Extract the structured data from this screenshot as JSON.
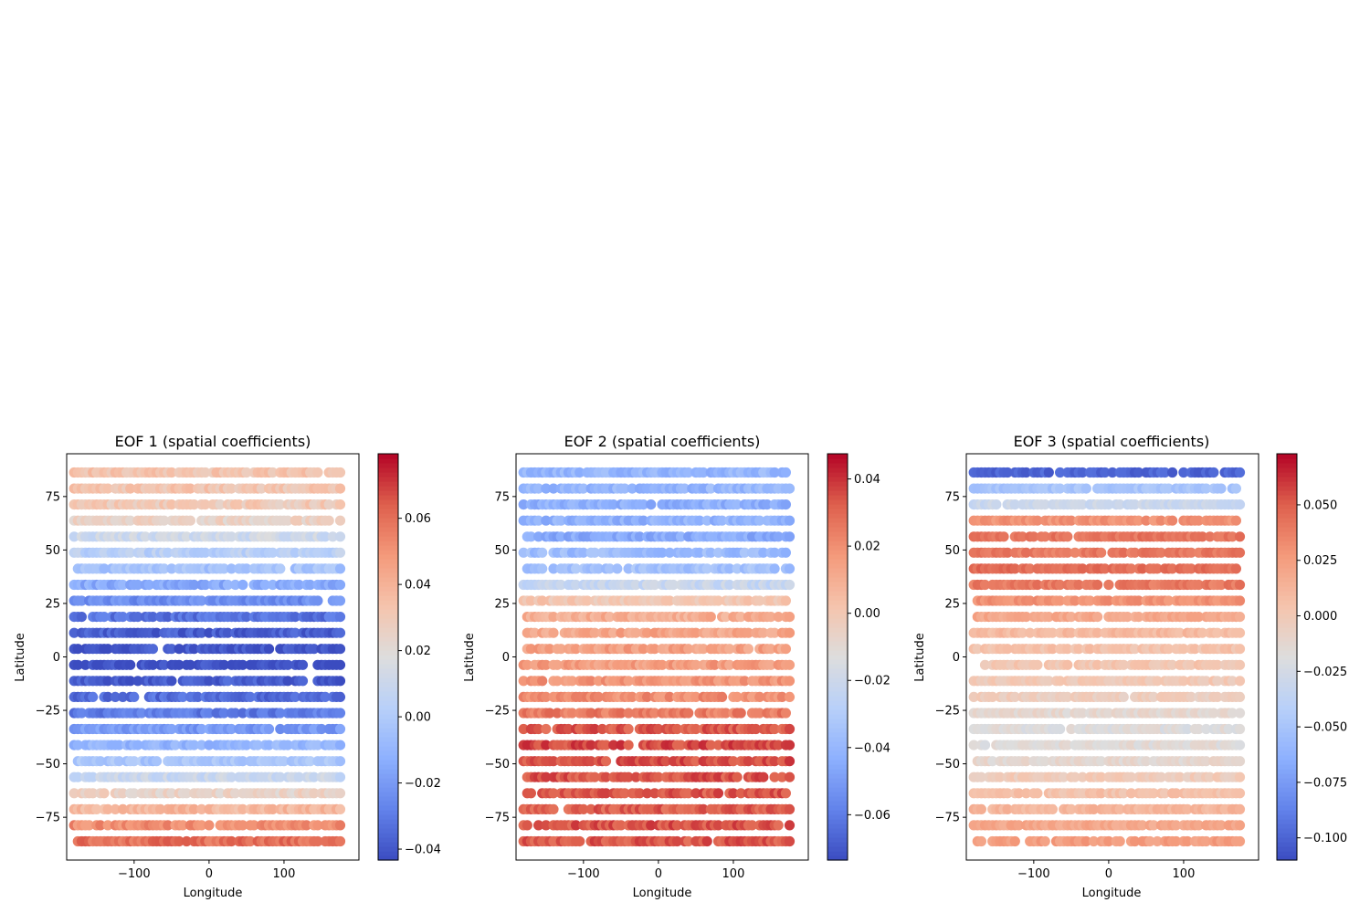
{
  "chart_data": [
    {
      "type": "scatter",
      "title": "EOF 1 (spatial coefficients)",
      "xlabel": "Longitude",
      "ylabel": "Latitude",
      "xlim": [
        -190,
        200
      ],
      "ylim": [
        -95,
        95
      ],
      "x_ticks": [
        -100,
        0,
        100
      ],
      "x_tick_labels": [
        "−100",
        "0",
        "100"
      ],
      "y_ticks": [
        -75,
        -50,
        -25,
        0,
        25,
        50,
        75
      ],
      "y_tick_labels": [
        "−75",
        "−50",
        "−25",
        "0",
        "25",
        "50",
        "75"
      ],
      "colormap": "coolwarm",
      "color_range": [
        -0.0433,
        0.0795
      ],
      "colorbar_ticks": [
        -0.04,
        -0.02,
        0.0,
        0.02,
        0.04,
        0.06
      ],
      "colorbar_tick_labels": [
        "−0.04",
        "−0.02",
        "0.00",
        "0.02",
        "0.04",
        "0.06"
      ],
      "lon_range": [
        -180,
        175
      ],
      "lat_rows": [
        {
          "lat": 86.25,
          "value": 0.033
        },
        {
          "lat": 78.75,
          "value": 0.032
        },
        {
          "lat": 71.25,
          "value": 0.03
        },
        {
          "lat": 63.75,
          "value": 0.025
        },
        {
          "lat": 56.25,
          "value": 0.012
        },
        {
          "lat": 48.75,
          "value": 0.004
        },
        {
          "lat": 41.25,
          "value": -0.004
        },
        {
          "lat": 33.75,
          "value": -0.014
        },
        {
          "lat": 26.25,
          "value": -0.024
        },
        {
          "lat": 18.75,
          "value": -0.032
        },
        {
          "lat": 11.25,
          "value": -0.038
        },
        {
          "lat": 3.75,
          "value": -0.041
        },
        {
          "lat": -3.75,
          "value": -0.042
        },
        {
          "lat": -11.25,
          "value": -0.038
        },
        {
          "lat": -18.75,
          "value": -0.034
        },
        {
          "lat": -26.25,
          "value": -0.03
        },
        {
          "lat": -33.75,
          "value": -0.02
        },
        {
          "lat": -41.25,
          "value": -0.01
        },
        {
          "lat": -48.75,
          "value": -0.002
        },
        {
          "lat": -56.25,
          "value": 0.01
        },
        {
          "lat": -63.75,
          "value": 0.025
        },
        {
          "lat": -71.25,
          "value": 0.038
        },
        {
          "lat": -78.75,
          "value": 0.052
        },
        {
          "lat": -86.25,
          "value": 0.06
        }
      ]
    },
    {
      "type": "scatter",
      "title": "EOF 2 (spatial coefficients)",
      "xlabel": "Longitude",
      "ylabel": "Latitude",
      "xlim": [
        -190,
        200
      ],
      "ylim": [
        -95,
        95
      ],
      "x_ticks": [
        -100,
        0,
        100
      ],
      "x_tick_labels": [
        "−100",
        "0",
        "100"
      ],
      "y_ticks": [
        -75,
        -50,
        -25,
        0,
        25,
        50,
        75
      ],
      "y_tick_labels": [
        "−75",
        "−50",
        "−25",
        "0",
        "25",
        "50",
        "75"
      ],
      "colormap": "coolwarm",
      "color_range": [
        -0.0735,
        0.0475
      ],
      "colorbar_ticks": [
        -0.06,
        -0.04,
        -0.02,
        0.0,
        0.02,
        0.04
      ],
      "colorbar_tick_labels": [
        "−0.06",
        "−0.04",
        "−0.02",
        "0.00",
        "0.02",
        "0.04"
      ],
      "lon_range": [
        -180,
        175
      ],
      "lat_rows": [
        {
          "lat": 86.25,
          "value": -0.04
        },
        {
          "lat": 78.75,
          "value": -0.04
        },
        {
          "lat": 71.25,
          "value": -0.043
        },
        {
          "lat": 63.75,
          "value": -0.042
        },
        {
          "lat": 56.25,
          "value": -0.045
        },
        {
          "lat": 48.75,
          "value": -0.038
        },
        {
          "lat": 41.25,
          "value": -0.035
        },
        {
          "lat": 33.75,
          "value": -0.022
        },
        {
          "lat": 26.25,
          "value": 0.0
        },
        {
          "lat": 18.75,
          "value": 0.01
        },
        {
          "lat": 11.25,
          "value": 0.013
        },
        {
          "lat": 3.75,
          "value": 0.015
        },
        {
          "lat": -3.75,
          "value": 0.016
        },
        {
          "lat": -11.25,
          "value": 0.018
        },
        {
          "lat": -18.75,
          "value": 0.02
        },
        {
          "lat": -26.25,
          "value": 0.025
        },
        {
          "lat": -33.75,
          "value": 0.033
        },
        {
          "lat": -41.25,
          "value": 0.036
        },
        {
          "lat": -48.75,
          "value": 0.035
        },
        {
          "lat": -56.25,
          "value": 0.034
        },
        {
          "lat": -63.75,
          "value": 0.033
        },
        {
          "lat": -71.25,
          "value": 0.032
        },
        {
          "lat": -78.75,
          "value": 0.034
        },
        {
          "lat": -86.25,
          "value": 0.033
        }
      ]
    },
    {
      "type": "scatter",
      "title": "EOF 3 (spatial coefficients)",
      "xlabel": "Longitude",
      "ylabel": "Latitude",
      "xlim": [
        -190,
        200
      ],
      "ylim": [
        -95,
        95
      ],
      "x_ticks": [
        -100,
        0,
        100
      ],
      "x_tick_labels": [
        "−100",
        "0",
        "100"
      ],
      "y_ticks": [
        -75,
        -50,
        -25,
        0,
        25,
        50,
        75
      ],
      "y_tick_labels": [
        "−75",
        "−50",
        "−25",
        "0",
        "25",
        "50",
        "75"
      ],
      "colormap": "coolwarm",
      "color_range": [
        -0.11,
        0.073
      ],
      "colorbar_ticks": [
        -0.1,
        -0.075,
        -0.05,
        -0.025,
        0.0,
        0.025,
        0.05
      ],
      "colorbar_tick_labels": [
        "−0.100",
        "−0.075",
        "−0.050",
        "−0.025",
        "0.000",
        "0.025",
        "0.050"
      ],
      "lon_range": [
        -180,
        175
      ],
      "lat_rows": [
        {
          "lat": 86.25,
          "value": -0.1
        },
        {
          "lat": 78.75,
          "value": -0.05
        },
        {
          "lat": 71.25,
          "value": -0.03
        },
        {
          "lat": 63.75,
          "value": 0.03
        },
        {
          "lat": 56.25,
          "value": 0.042
        },
        {
          "lat": 48.75,
          "value": 0.04
        },
        {
          "lat": 41.25,
          "value": 0.045
        },
        {
          "lat": 33.75,
          "value": 0.04
        },
        {
          "lat": 26.25,
          "value": 0.03
        },
        {
          "lat": 18.75,
          "value": 0.02
        },
        {
          "lat": 11.25,
          "value": 0.01
        },
        {
          "lat": 3.75,
          "value": 0.005
        },
        {
          "lat": -3.75,
          "value": 0.002
        },
        {
          "lat": -11.25,
          "value": 0.0
        },
        {
          "lat": -18.75,
          "value": -0.004
        },
        {
          "lat": -26.25,
          "value": -0.012
        },
        {
          "lat": -33.75,
          "value": -0.018
        },
        {
          "lat": -41.25,
          "value": -0.016
        },
        {
          "lat": -48.75,
          "value": -0.012
        },
        {
          "lat": -56.25,
          "value": -0.002
        },
        {
          "lat": -63.75,
          "value": 0.005
        },
        {
          "lat": -71.25,
          "value": 0.012
        },
        {
          "lat": -78.75,
          "value": 0.02
        },
        {
          "lat": -86.25,
          "value": 0.025
        }
      ]
    }
  ]
}
